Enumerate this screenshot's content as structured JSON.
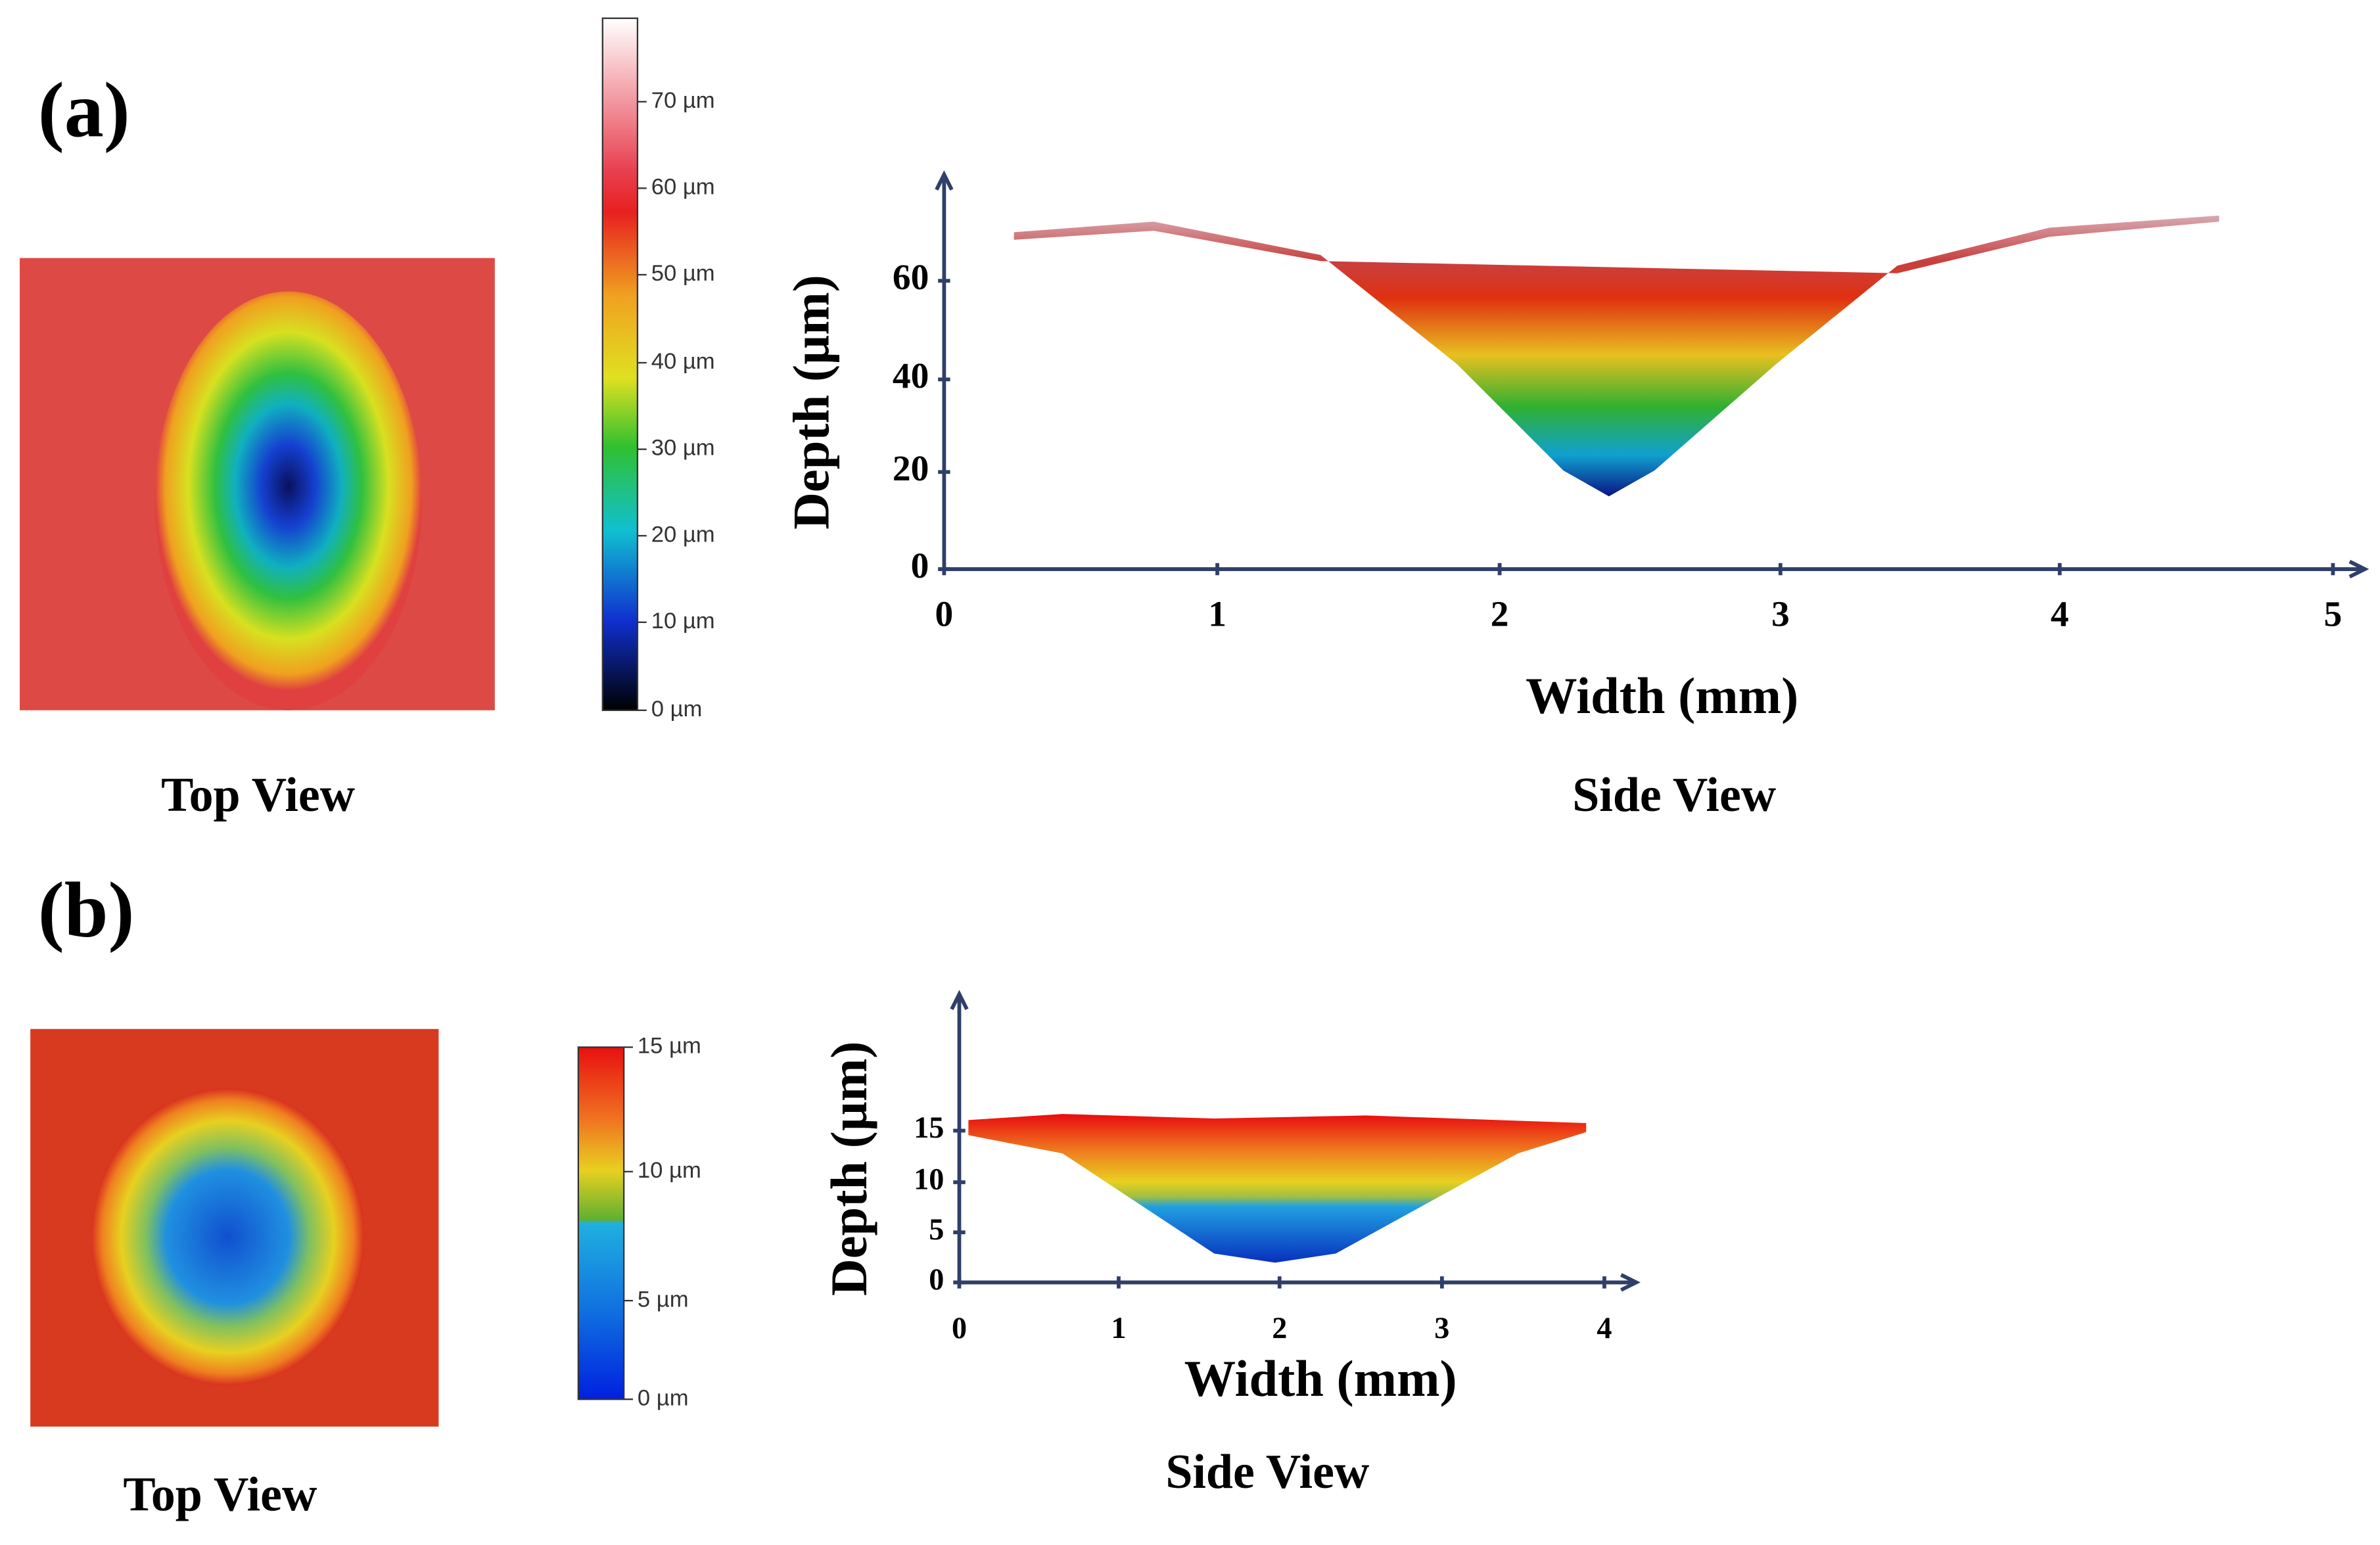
{
  "panels": [
    {
      "label": "(a)",
      "top_view": {
        "caption": "Top View"
      },
      "colorbar": {
        "ticks": [
          "70 µm",
          "60 µm",
          "50 µm",
          "40 µm",
          "30 µm",
          "20 µm",
          "10 µm",
          "0 µm"
        ]
      },
      "side_view": {
        "y_label": "Depth (µm)",
        "x_label": "Width (mm)",
        "xticks": [
          0,
          1,
          2,
          3,
          4,
          5
        ],
        "yticks": [
          0,
          20,
          40,
          60
        ],
        "caption": "Side View"
      }
    },
    {
      "label": "(b)",
      "top_view": {
        "caption": "Top View"
      },
      "colorbar": {
        "ticks": [
          "15 µm",
          "10 µm",
          "5 µm",
          "0 µm"
        ]
      },
      "side_view": {
        "y_label": "Depth (µm)",
        "x_label": "Width (mm)",
        "xticks": [
          0,
          1,
          2,
          3,
          4
        ],
        "yticks": [
          0,
          5,
          10,
          15
        ],
        "caption": "Side View"
      }
    }
  ]
}
